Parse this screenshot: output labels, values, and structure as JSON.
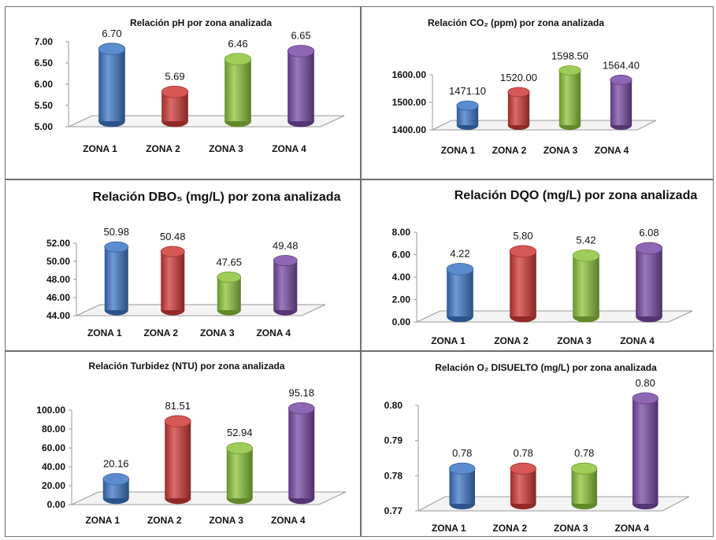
{
  "colors": {
    "zona1": "#3f78c8",
    "zona2": "#cf3a37",
    "zona3": "#8cc43a",
    "zona4": "#7a4ba6"
  },
  "chart_data": [
    {
      "type": "bar",
      "title": "Relación pH por zona analizada",
      "categories": [
        "ZONA 1",
        "ZONA 2",
        "ZONA 3",
        "ZONA 4"
      ],
      "values": [
        6.7,
        5.69,
        6.46,
        6.65
      ],
      "value_labels": [
        "6.70",
        "5.69",
        "6.46",
        "6.65"
      ],
      "ylim": [
        5.0,
        7.0
      ],
      "yticks": [
        "5.00",
        "5.50",
        "6.00",
        "6.50",
        "7.00"
      ],
      "grid": false
    },
    {
      "type": "bar",
      "title": "Relación CO₂ (ppm) por zona analizada",
      "categories": [
        "ZONA 1",
        "ZONA 2",
        "ZONA 3",
        "ZONA 4"
      ],
      "values": [
        1471.1,
        1520.0,
        1598.5,
        1564.4
      ],
      "value_labels": [
        "1471.10",
        "1520.00",
        "1598.50",
        "1564.40"
      ],
      "ylim": [
        1400,
        1600
      ],
      "yticks": [
        "1400.00",
        "1500.00",
        "1600.00"
      ],
      "grid": false
    },
    {
      "type": "bar",
      "title": "Relación DBO₅ (mg/L) por zona analizada",
      "categories": [
        "ZONA 1",
        "ZONA 2",
        "ZONA 3",
        "ZONA 4"
      ],
      "values": [
        50.98,
        50.48,
        47.65,
        49.48
      ],
      "value_labels": [
        "50.98",
        "50.48",
        "47.65",
        "49.48"
      ],
      "ylim": [
        44,
        52
      ],
      "yticks": [
        "44.00",
        "46.00",
        "48.00",
        "50.00",
        "52.00"
      ],
      "grid": false
    },
    {
      "type": "bar",
      "title": "Relación DQO (mg/L) por zona analizada",
      "categories": [
        "ZONA 1",
        "ZONA 2",
        "ZONA 3",
        "ZONA 4"
      ],
      "values": [
        4.22,
        5.8,
        5.42,
        6.08
      ],
      "value_labels": [
        "4.22",
        "5.80",
        "5.42",
        "6.08"
      ],
      "ylim": [
        0,
        8
      ],
      "yticks": [
        "0.00",
        "2.00",
        "4.00",
        "6.00",
        "8.00"
      ],
      "grid": false
    },
    {
      "type": "bar",
      "title": "Relación Turbidez (NTU) por zona analizada",
      "categories": [
        "ZONA 1",
        "ZONA 2",
        "ZONA 3",
        "ZONA 4"
      ],
      "values": [
        20.16,
        81.51,
        52.94,
        95.18
      ],
      "value_labels": [
        "20.16",
        "81.51",
        "52.94",
        "95.18"
      ],
      "ylim": [
        0,
        100
      ],
      "yticks": [
        "0.00",
        "20.00",
        "40.00",
        "60.00",
        "80.00",
        "100.00"
      ],
      "grid": false
    },
    {
      "type": "bar",
      "title": "Relación O₂ DISUELTO (mg/L) por zona analizada",
      "categories": [
        "ZONA 1",
        "ZONA 2",
        "ZONA 3",
        "ZONA 4"
      ],
      "values": [
        0.78,
        0.78,
        0.78,
        0.8
      ],
      "value_labels": [
        "0.78",
        "0.78",
        "0.78",
        "0.80"
      ],
      "ylim": [
        0.77,
        0.8
      ],
      "yticks": [
        "0.77",
        "0.78",
        "0.79",
        "0.80"
      ],
      "grid": false
    }
  ]
}
